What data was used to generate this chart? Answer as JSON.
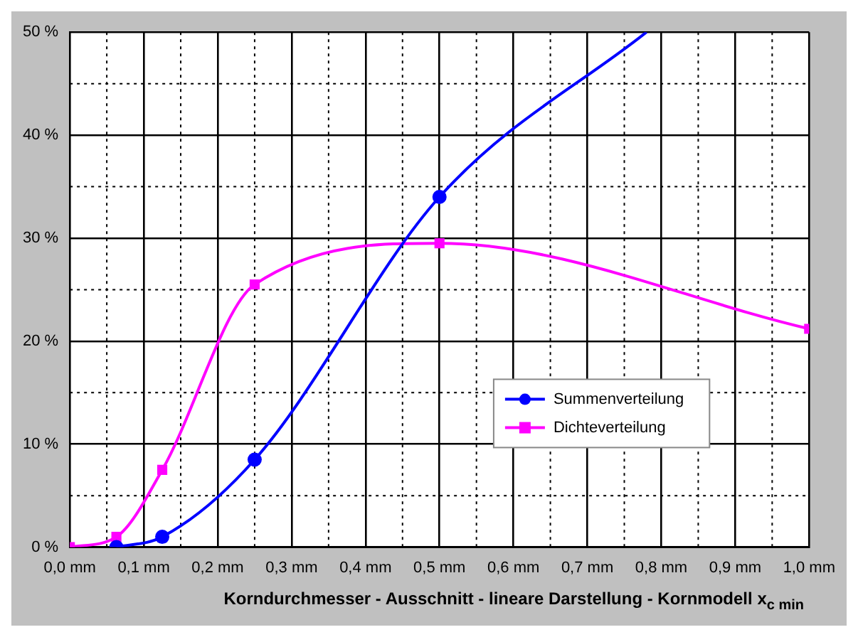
{
  "chart_data": {
    "type": "line",
    "xlabel": "Korndurchmesser - Ausschnitt - lineare Darstellung - Kornmodell x$_{c min}$",
    "series": [
      {
        "name": "Summenverteilung",
        "color": "#0000ff",
        "x": [
          0.063,
          0.125,
          0.25,
          0.5,
          0.78
        ],
        "values": [
          0,
          1.0,
          8.5,
          34,
          50
        ],
        "marker": "circle"
      },
      {
        "name": "Dichteverteilung",
        "color": "#ff00ff",
        "x": [
          0,
          0.063,
          0.125,
          0.25,
          0.5,
          1.0
        ],
        "values": [
          0,
          1.0,
          7.5,
          25.5,
          29.5,
          21.2
        ],
        "marker": "square"
      }
    ],
    "xlim": [
      0,
      1.0
    ],
    "xticks": [
      {
        "value": 0,
        "label": "0,0 mm"
      },
      {
        "value": 0.05,
        "label": null
      },
      {
        "value": 0.1,
        "label": "0,1 mm"
      },
      {
        "value": 0.15,
        "label": null
      },
      {
        "value": 0.2,
        "label": "0,2 mm"
      },
      {
        "value": 0.25,
        "label": null
      },
      {
        "value": 0.3,
        "label": "0,3 mm"
      },
      {
        "value": 0.35,
        "label": null
      },
      {
        "value": 0.4,
        "label": "0,4 mm"
      },
      {
        "value": 0.45,
        "label": null
      },
      {
        "value": 0.5,
        "label": "0,5 mm"
      },
      {
        "value": 0.55,
        "label": null
      },
      {
        "value": 0.6,
        "label": "0,6 mm"
      },
      {
        "value": 0.65,
        "label": null
      },
      {
        "value": 0.7,
        "label": "0,7 mm"
      },
      {
        "value": 0.75,
        "label": null
      },
      {
        "value": 0.8,
        "label": "0,8 mm"
      },
      {
        "value": 0.85,
        "label": null
      },
      {
        "value": 0.9,
        "label": "0,9 mm"
      },
      {
        "value": 0.95,
        "label": null
      },
      {
        "value": 1.0,
        "label": "1,0 mm"
      }
    ],
    "ylim": [
      0,
      50
    ],
    "yticks": [
      {
        "value": 0,
        "label": "0 %"
      },
      {
        "value": 5,
        "label": null
      },
      {
        "value": 10,
        "label": "10 %"
      },
      {
        "value": 15,
        "label": null
      },
      {
        "value": 20,
        "label": "20 %"
      },
      {
        "value": 25,
        "label": null
      },
      {
        "value": 30,
        "label": "30 %"
      },
      {
        "value": 35,
        "label": null
      },
      {
        "value": 40,
        "label": "40 %"
      },
      {
        "value": 45,
        "label": null
      },
      {
        "value": 50,
        "label": "50 %"
      }
    ],
    "grid": true,
    "legend": "bottom right"
  }
}
